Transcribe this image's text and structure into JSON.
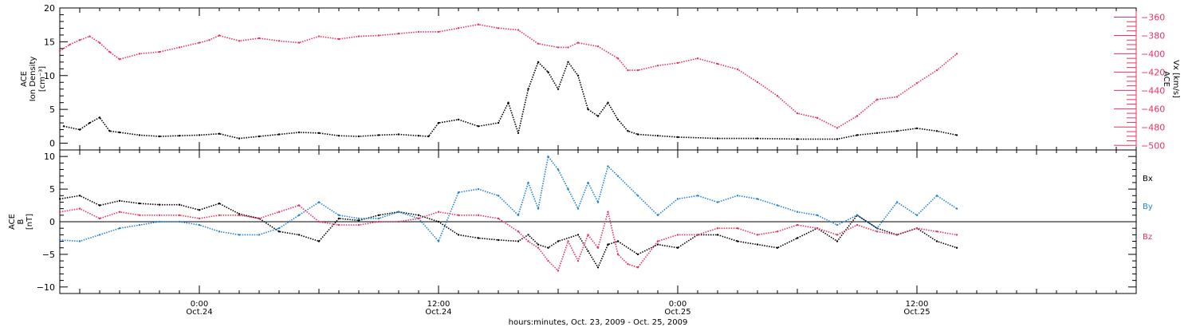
{
  "chart_data": [
    {
      "type": "scatter",
      "title": "",
      "xlabel": "hours:minutes, Oct. 23, 2009 - Oct. 25, 2009",
      "x_range_hours": [
        -7,
        47
      ],
      "x_ticks": [
        {
          "hour": 0,
          "time": "0:00",
          "date": "Oct.24"
        },
        {
          "hour": 12,
          "time": "12:00",
          "date": "Oct.24"
        },
        {
          "hour": 24,
          "time": "0:00",
          "date": "Oct.25"
        },
        {
          "hour": 36,
          "time": "12:00",
          "date": "Oct.25"
        }
      ],
      "left_axis": {
        "label_lines": [
          "ACE",
          "Ion Density",
          "[cm⁻³]"
        ],
        "ylim": [
          -1,
          20
        ],
        "ticks": [
          0,
          5,
          10,
          15,
          20
        ],
        "color": "#000000"
      },
      "right_axis": {
        "label_lines": [
          "ACE",
          "Vx [km/s]"
        ],
        "ylim": [
          -505,
          -350
        ],
        "ticks": [
          -360,
          -380,
          -400,
          -420,
          -440,
          -460,
          -480,
          -500
        ],
        "color": "#e8335e"
      },
      "series": [
        {
          "axis": "left",
          "color": "#000000",
          "x": [
            -6.8,
            -6.0,
            -5.5,
            -5.0,
            -4.5,
            -4.0,
            -3.0,
            -2.0,
            -1.0,
            0.0,
            1.0,
            2.0,
            3.0,
            4.0,
            5.0,
            6.0,
            7.0,
            8.0,
            9.0,
            10.0,
            11.0,
            11.5,
            12.0,
            13.0,
            14.0,
            15.0,
            15.5,
            16.0,
            16.5,
            17.0,
            17.5,
            18.0,
            18.5,
            19.0,
            19.5,
            20.0,
            20.5,
            21.0,
            21.5,
            22.0,
            23.0,
            24.0,
            26.0,
            28.0,
            30.0,
            32.0,
            33.0,
            34.0,
            35.0,
            36.0,
            37.0,
            38.0
          ],
          "y": [
            2.5,
            2.0,
            3.0,
            3.8,
            1.8,
            1.6,
            1.2,
            1.0,
            1.1,
            1.2,
            1.4,
            0.7,
            1.0,
            1.3,
            1.6,
            1.5,
            1.1,
            1.0,
            1.2,
            1.3,
            1.1,
            1.0,
            3.0,
            3.5,
            2.5,
            3.0,
            6.0,
            1.5,
            8.0,
            12.0,
            10.5,
            8.0,
            12.0,
            10.0,
            5.0,
            4.0,
            6.0,
            3.5,
            1.8,
            1.3,
            1.1,
            0.9,
            0.7,
            0.7,
            0.6,
            0.6,
            1.2,
            1.5,
            1.8,
            2.2,
            1.8,
            1.2
          ]
        },
        {
          "axis": "right",
          "color": "#e8335e",
          "x": [
            -7.0,
            -6.5,
            -6.0,
            -5.5,
            -5.0,
            -4.5,
            -4.0,
            -3.0,
            -2.0,
            -1.0,
            0.0,
            0.5,
            1.0,
            2.0,
            3.0,
            4.0,
            5.0,
            6.0,
            7.0,
            8.0,
            9.0,
            10.0,
            11.0,
            12.0,
            13.0,
            14.0,
            15.0,
            16.0,
            17.0,
            18.0,
            18.5,
            19.0,
            20.0,
            21.0,
            21.5,
            22.0,
            23.0,
            24.0,
            25.0,
            26.0,
            27.0,
            28.0,
            29.0,
            30.0,
            31.0,
            32.0,
            33.0,
            34.0,
            35.0,
            36.0,
            37.0,
            38.0
          ],
          "y": [
            -397,
            -390,
            -385,
            -381,
            -388,
            -398,
            -406,
            -400,
            -398,
            -393,
            -388,
            -385,
            -380,
            -386,
            -383,
            -386,
            -388,
            -381,
            -384,
            -381,
            -380,
            -378,
            -376,
            -376,
            -372,
            -368,
            -372,
            -374,
            -389,
            -393,
            -393,
            -388,
            -392,
            -405,
            -418,
            -418,
            -413,
            -410,
            -405,
            -411,
            -417,
            -431,
            -446,
            -465,
            -470,
            -481,
            -468,
            -450,
            -447,
            -432,
            -418,
            -400
          ]
        }
      ]
    },
    {
      "type": "scatter",
      "title": "",
      "xlabel": "hours:minutes, Oct. 23, 2009 - Oct. 25, 2009",
      "x_range_hours": [
        -7,
        47
      ],
      "left_axis": {
        "label_lines": [
          "ACE",
          "B",
          "[nT]"
        ],
        "ylim": [
          -11,
          11
        ],
        "ticks": [
          10,
          5,
          0,
          -5,
          -10
        ],
        "color": "#000000"
      },
      "zero_line": true,
      "series": [
        {
          "name": "Bx",
          "color": "#000000",
          "x": [
            -7.0,
            -6.0,
            -5.0,
            -4.0,
            -3.0,
            -2.0,
            -1.0,
            0.0,
            1.0,
            2.0,
            3.0,
            4.0,
            5.0,
            6.0,
            7.0,
            8.0,
            9.0,
            10.0,
            11.0,
            12.0,
            13.0,
            14.0,
            15.0,
            16.0,
            16.5,
            17.0,
            17.5,
            18.0,
            19.0,
            19.5,
            20.0,
            20.5,
            21.0,
            22.0,
            23.0,
            24.0,
            25.0,
            26.0,
            27.0,
            28.0,
            29.0,
            30.0,
            31.0,
            32.0,
            33.0,
            34.0,
            35.0,
            36.0,
            37.0,
            38.0
          ],
          "y": [
            3.5,
            4.0,
            2.5,
            3.2,
            2.8,
            2.6,
            2.6,
            1.8,
            2.8,
            1.2,
            0.5,
            -1.5,
            -2.0,
            -3.0,
            0.5,
            0.2,
            1.0,
            1.5,
            1.0,
            0.0,
            -2.0,
            -2.5,
            -2.8,
            -3.0,
            -2.0,
            -3.5,
            -4.0,
            -3.0,
            -2.0,
            -4.5,
            -7.0,
            -3.5,
            -3.0,
            -5.0,
            -3.5,
            -4.0,
            -2.0,
            -2.0,
            -3.0,
            -3.5,
            -4.0,
            -2.5,
            -1.0,
            -3.0,
            1.0,
            -1.0,
            -2.0,
            -1.0,
            -3.0,
            -4.0
          ]
        },
        {
          "name": "By",
          "color": "#1f82dc",
          "x": [
            -7.0,
            -6.0,
            -5.0,
            -4.0,
            -3.0,
            -2.0,
            -1.0,
            0.0,
            1.0,
            2.0,
            3.0,
            4.0,
            5.0,
            6.0,
            7.0,
            8.0,
            9.0,
            10.0,
            11.0,
            12.0,
            13.0,
            14.0,
            15.0,
            16.0,
            16.5,
            17.0,
            17.5,
            18.0,
            18.5,
            19.0,
            19.5,
            20.0,
            20.5,
            21.0,
            22.0,
            23.0,
            24.0,
            25.0,
            26.0,
            27.0,
            28.0,
            29.0,
            30.0,
            31.0,
            32.0,
            33.0,
            34.0,
            35.0,
            36.0,
            37.0,
            38.0
          ],
          "y": [
            -2.8,
            -3.0,
            -2.0,
            -1.0,
            -0.5,
            0.0,
            0.0,
            -0.5,
            -1.5,
            -2.0,
            -2.0,
            -1.0,
            1.0,
            3.0,
            1.0,
            0.5,
            0.5,
            1.5,
            0.5,
            -3.0,
            4.5,
            5.0,
            4.0,
            1.0,
            6.0,
            2.0,
            10.0,
            8.0,
            5.0,
            2.0,
            6.0,
            3.0,
            8.5,
            7.0,
            4.0,
            1.0,
            3.5,
            4.0,
            3.0,
            4.0,
            3.5,
            2.5,
            1.5,
            1.0,
            -0.5,
            1.0,
            -1.0,
            3.0,
            1.0,
            4.0,
            2.0
          ]
        },
        {
          "name": "Bz",
          "color": "#e8335e",
          "x": [
            -7.0,
            -6.0,
            -5.0,
            -4.0,
            -3.0,
            -2.0,
            -1.0,
            0.0,
            1.0,
            2.0,
            3.0,
            4.0,
            5.0,
            6.0,
            7.0,
            8.0,
            9.0,
            10.0,
            11.0,
            12.0,
            13.0,
            14.0,
            15.0,
            16.0,
            16.5,
            17.0,
            17.5,
            18.0,
            18.5,
            19.0,
            19.5,
            20.0,
            20.5,
            21.0,
            21.5,
            22.0,
            23.0,
            24.0,
            25.0,
            26.0,
            27.0,
            28.0,
            29.0,
            30.0,
            31.0,
            32.0,
            33.0,
            34.0,
            35.0,
            36.0,
            37.0,
            38.0
          ],
          "y": [
            1.5,
            2.0,
            0.5,
            1.5,
            1.0,
            1.0,
            1.0,
            0.5,
            1.0,
            1.0,
            0.5,
            1.5,
            2.5,
            0.0,
            -0.5,
            -0.5,
            0.0,
            0.0,
            0.5,
            1.5,
            1.0,
            1.0,
            0.5,
            -1.5,
            -3.0,
            -4.0,
            -6.0,
            -7.5,
            -3.0,
            -6.0,
            -2.0,
            -4.0,
            1.5,
            -5.0,
            -6.5,
            -7.0,
            -3.0,
            -2.0,
            -2.0,
            -1.0,
            -1.0,
            -2.0,
            -1.5,
            -0.5,
            -1.0,
            -2.0,
            -0.5,
            -1.5,
            -2.0,
            -1.0,
            -1.5,
            -2.0
          ]
        }
      ]
    }
  ]
}
